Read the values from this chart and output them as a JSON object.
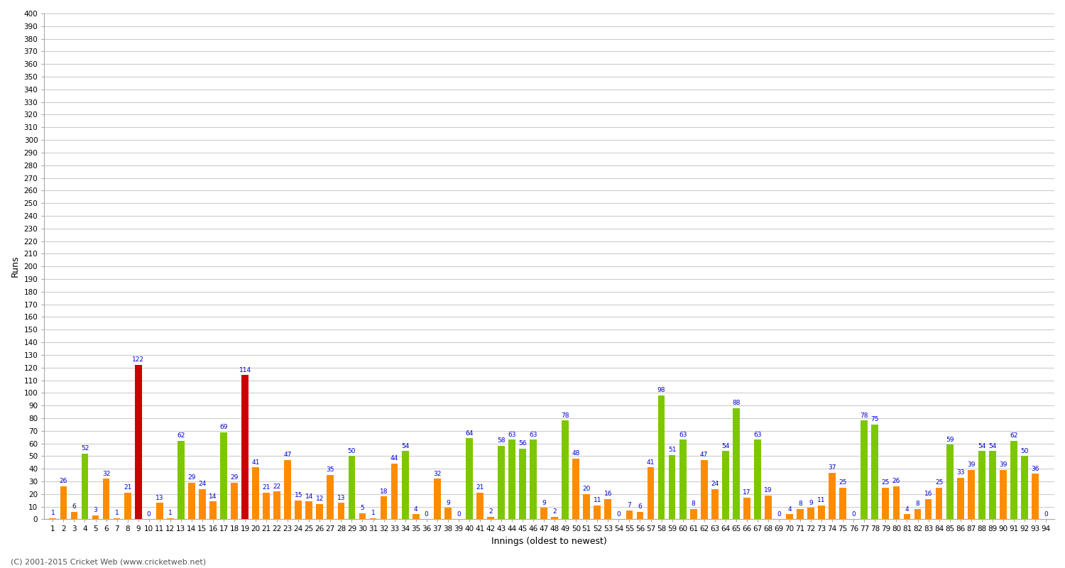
{
  "xlabel": "Innings (oldest to newest)",
  "ylabel": "Runs",
  "background_color": "#ffffff",
  "grid_color": "#cccccc",
  "innings": [
    1,
    2,
    3,
    4,
    5,
    6,
    7,
    8,
    9,
    10,
    11,
    12,
    13,
    14,
    15,
    16,
    17,
    18,
    19,
    20,
    21,
    22,
    23,
    24,
    25,
    26,
    27,
    28,
    29,
    30,
    31,
    32,
    33,
    34,
    35,
    36,
    37,
    38,
    39,
    40,
    41,
    42,
    43,
    44,
    45,
    46,
    47,
    48,
    49,
    50,
    51,
    52,
    53,
    54,
    55,
    56,
    57,
    58,
    59,
    60,
    61,
    62,
    63,
    64,
    65,
    66,
    67,
    68,
    69,
    70,
    71,
    72,
    73,
    74,
    75,
    76,
    77,
    78,
    79,
    80,
    81,
    82,
    83,
    84,
    85,
    86,
    87,
    88,
    89,
    90,
    91,
    92,
    93,
    94
  ],
  "scores": [
    1,
    26,
    6,
    52,
    3,
    32,
    1,
    21,
    122,
    0,
    13,
    1,
    62,
    29,
    24,
    14,
    69,
    29,
    114,
    41,
    21,
    22,
    47,
    15,
    14,
    12,
    35,
    13,
    50,
    5,
    1,
    18,
    44,
    54,
    4,
    0,
    32,
    9,
    0,
    64,
    21,
    2,
    58,
    63,
    56,
    63,
    9,
    2,
    78,
    48,
    20,
    11,
    16,
    0,
    7,
    6,
    41,
    98,
    51,
    63,
    8,
    47,
    24,
    54,
    88,
    17,
    63,
    19,
    0,
    4,
    8,
    9,
    11,
    37,
    25,
    0,
    78,
    75,
    25,
    26,
    4,
    8,
    16,
    25,
    59,
    33,
    39,
    54,
    54,
    39,
    62,
    50,
    36,
    0
  ],
  "is_century": [
    false,
    false,
    false,
    false,
    false,
    false,
    false,
    false,
    true,
    false,
    false,
    false,
    false,
    false,
    false,
    false,
    false,
    false,
    true,
    false,
    false,
    false,
    false,
    false,
    false,
    false,
    false,
    false,
    false,
    false,
    false,
    false,
    false,
    false,
    false,
    false,
    false,
    false,
    false,
    false,
    false,
    false,
    false,
    false,
    false,
    false,
    false,
    false,
    false,
    false,
    false,
    false,
    false,
    false,
    false,
    false,
    false,
    false,
    false,
    false,
    false,
    false,
    false,
    false,
    false,
    false,
    false,
    false,
    false,
    false,
    false,
    false,
    false,
    false,
    false,
    false,
    false,
    false,
    false,
    false,
    false,
    false,
    false,
    false,
    false,
    false,
    false,
    false,
    false,
    false,
    false,
    false,
    false,
    false
  ],
  "bar_color_normal": "#ff8c00",
  "bar_color_fifty": "#7dc700",
  "bar_color_century": "#cc0000",
  "fifty_threshold": 50,
  "century_threshold": 100,
  "ylim": [
    0,
    400
  ],
  "yticks": [
    0,
    10,
    20,
    30,
    40,
    50,
    60,
    70,
    80,
    90,
    100,
    110,
    120,
    130,
    140,
    150,
    160,
    170,
    180,
    190,
    200,
    210,
    220,
    230,
    240,
    250,
    260,
    270,
    280,
    290,
    300,
    310,
    320,
    330,
    340,
    350,
    360,
    370,
    380,
    390,
    400
  ],
  "label_color": "#0000cc",
  "label_fontsize": 6.5,
  "axis_label_fontsize": 9,
  "tick_fontsize": 7.5,
  "footer": "(C) 2001-2015 Cricket Web (www.cricketweb.net)"
}
